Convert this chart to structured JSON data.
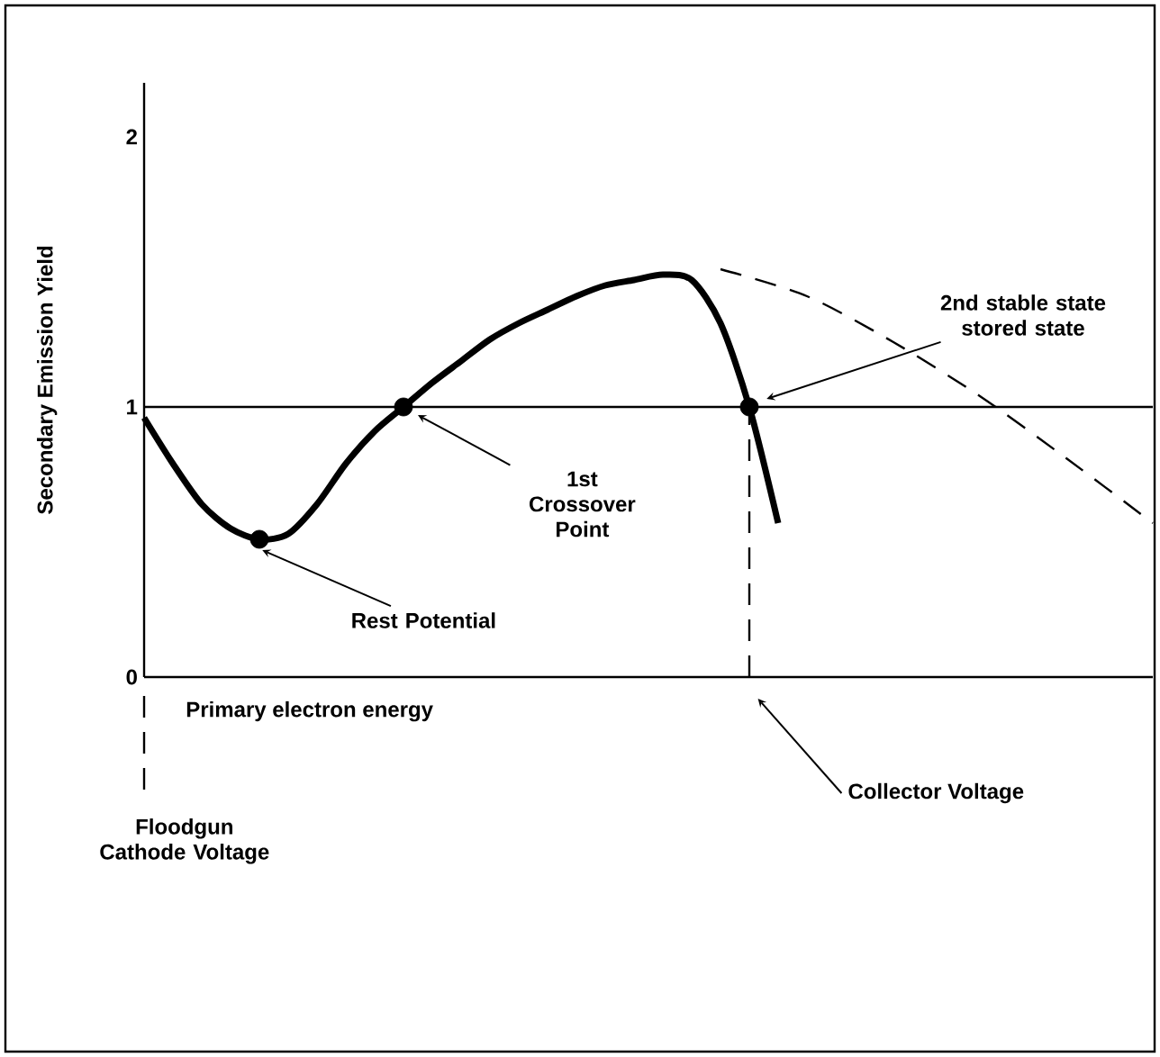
{
  "chart_data": {
    "type": "line",
    "xlabel": "Primary electron energy",
    "ylabel": "Secondary Emission Yield",
    "categories": [
      null,
      null,
      null,
      null,
      null,
      null,
      null,
      null,
      null,
      null,
      null,
      null,
      null,
      null,
      null,
      null,
      null,
      null,
      null,
      null,
      null,
      null,
      null,
      null,
      null,
      null,
      null,
      null,
      null,
      null,
      null,
      null,
      null,
      null,
      null,
      null
    ],
    "series": [
      {
        "color": "#000000",
        "line_style": "solid",
        "values": [
          0.96,
          0.79,
          0.64,
          0.55,
          0.51,
          0.53,
          0.64,
          0.79,
          0.91,
          1.0,
          1.09,
          1.17,
          1.25,
          1.31,
          1.36,
          1.41,
          1.45,
          1.47,
          1.49,
          1.47,
          1.31,
          1.0,
          0.57,
          null,
          null,
          null,
          null,
          null,
          null,
          null,
          null,
          null,
          null,
          null,
          null,
          null
        ]
      },
      {
        "color": "#000000",
        "line_style": "dashed",
        "values": [
          null,
          null,
          null,
          null,
          null,
          null,
          null,
          null,
          null,
          null,
          null,
          null,
          null,
          null,
          null,
          null,
          null,
          null,
          null,
          null,
          1.51,
          null,
          null,
          1.41,
          null,
          null,
          1.24,
          null,
          null,
          1.04,
          null,
          null,
          0.81,
          null,
          null,
          0.57
        ]
      },
      {
        "type": "scatter",
        "marker": "circle",
        "color": "#000000",
        "values": [
          null,
          null,
          null,
          null,
          0.51,
          null,
          null,
          null,
          null,
          1.0,
          null,
          null,
          null,
          null,
          null,
          null,
          null,
          null,
          null,
          null,
          null,
          1.0,
          null,
          null,
          null,
          null,
          null,
          null,
          null,
          null,
          null,
          null,
          null,
          null,
          null,
          null
        ]
      }
    ],
    "ylim": [
      0,
      2.2
    ],
    "yticks": [
      0,
      1,
      2
    ],
    "tick_labels": "y",
    "grid": false,
    "ref_lines": [
      {
        "axis": "y",
        "value": 1
      }
    ],
    "annotations": [
      "Rest Potential",
      "1st Crossover Point",
      "2nd stable state stored state",
      "Floodgun Cathode Voltage",
      "Collector Voltage"
    ]
  }
}
